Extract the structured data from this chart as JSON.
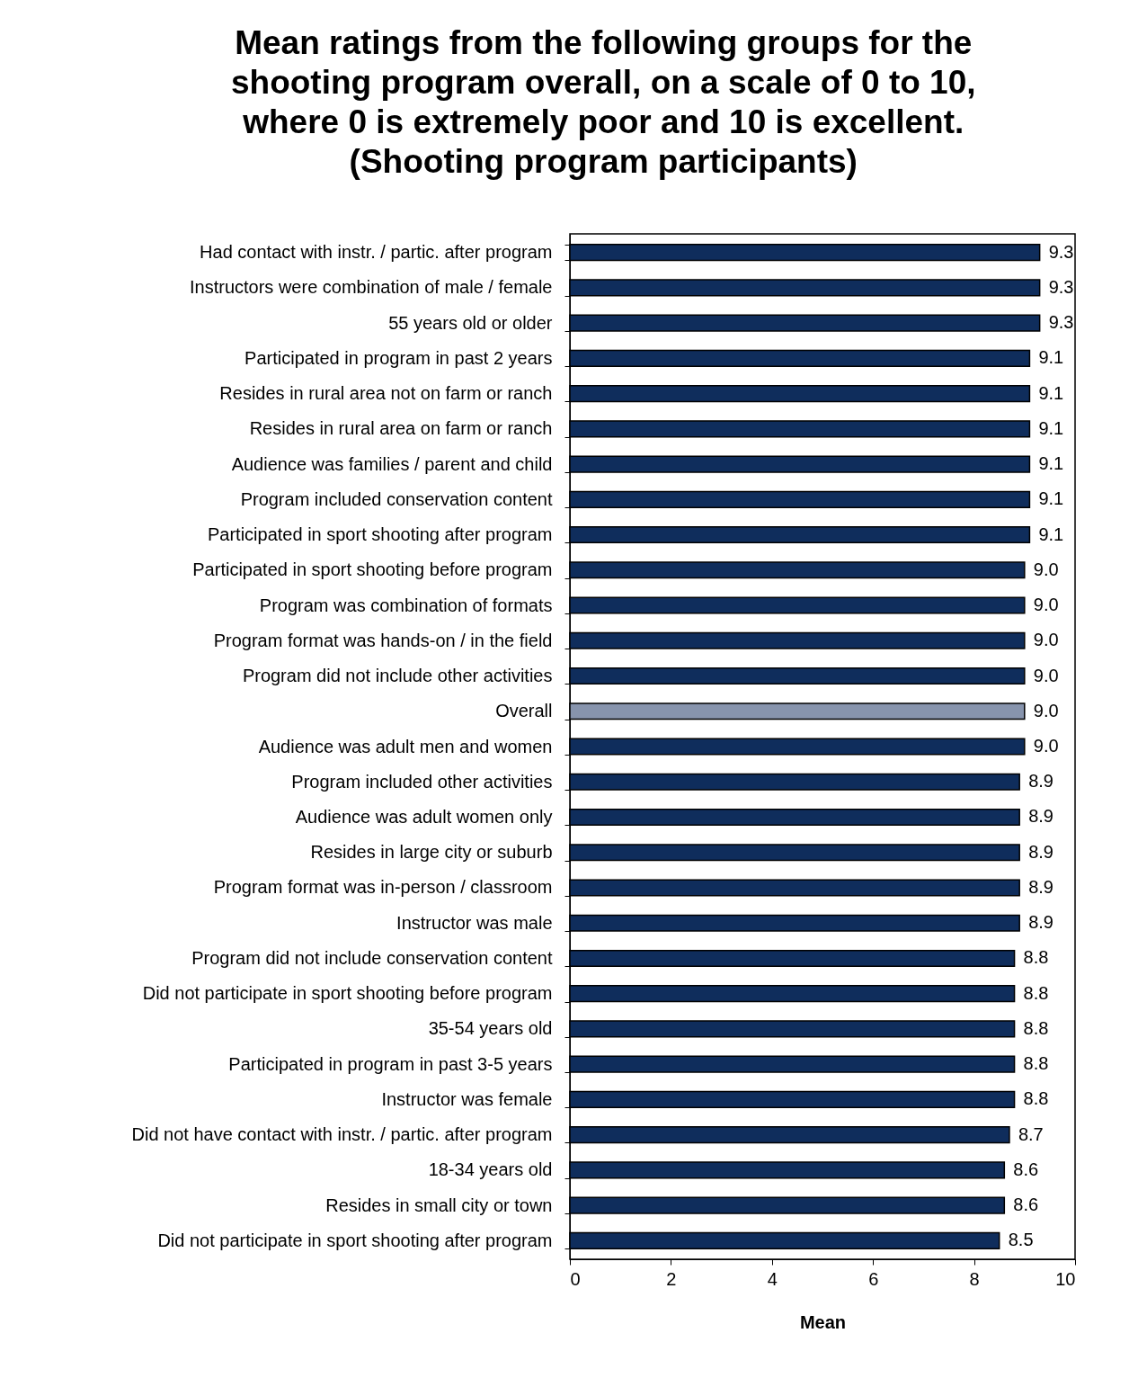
{
  "chart_data": {
    "type": "bar",
    "orientation": "horizontal",
    "title": "Mean ratings from the following groups for the shooting program overall, on a scale of 0 to 10, where 0 is extremely poor and 10 is excellent. (Shooting program participants)",
    "xlabel": "Mean",
    "categories": [
      "Had contact with instr. / partic. after program",
      "Instructors were combination of male / female",
      "55 years old or older",
      "Participated in program in past 2 years",
      "Resides in rural area not on farm or ranch",
      "Resides in rural area on farm or ranch",
      "Audience was families / parent and child",
      "Program included conservation content",
      "Participated in sport shooting after program",
      "Participated in sport shooting before program",
      "Program was combination of formats",
      "Program format was hands-on / in the field",
      "Program did not include other activities",
      "Overall",
      "Audience was adult men and women",
      "Program included other activities",
      "Audience was adult women only",
      "Resides in large city or suburb",
      "Program format was in-person / classroom",
      "Instructor was male",
      "Program did not include conservation content",
      "Did not participate in sport shooting before program",
      "35-54 years old",
      "Participated in program in past 3-5 years",
      "Instructor was female",
      "Did not have contact with instr. / partic. after program",
      "18-34 years old",
      "Resides in small city or town",
      "Did not participate in sport shooting after program"
    ],
    "values": [
      9.3,
      9.3,
      9.3,
      9.1,
      9.1,
      9.1,
      9.1,
      9.1,
      9.1,
      9.0,
      9.0,
      9.0,
      9.0,
      9.0,
      9.0,
      8.9,
      8.9,
      8.9,
      8.9,
      8.9,
      8.8,
      8.8,
      8.8,
      8.8,
      8.8,
      8.7,
      8.6,
      8.6,
      8.5
    ],
    "colors": [
      "#0f2d5c",
      "#0f2d5c",
      "#0f2d5c",
      "#0f2d5c",
      "#0f2d5c",
      "#0f2d5c",
      "#0f2d5c",
      "#0f2d5c",
      "#0f2d5c",
      "#0f2d5c",
      "#0f2d5c",
      "#0f2d5c",
      "#0f2d5c",
      "#8794ad",
      "#0f2d5c",
      "#0f2d5c",
      "#0f2d5c",
      "#0f2d5c",
      "#0f2d5c",
      "#0f2d5c",
      "#0f2d5c",
      "#0f2d5c",
      "#0f2d5c",
      "#0f2d5c",
      "#0f2d5c",
      "#0f2d5c",
      "#0f2d5c",
      "#0f2d5c",
      "#0f2d5c"
    ],
    "xlim": [
      0,
      10
    ],
    "xticks": [
      0,
      2,
      4,
      6,
      8,
      10
    ],
    "value_labels": [
      "9.3",
      "9.3",
      "9.3",
      "9.1",
      "9.1",
      "9.1",
      "9.1",
      "9.1",
      "9.1",
      "9.0",
      "9.0",
      "9.0",
      "9.0",
      "9.0",
      "9.0",
      "8.9",
      "8.9",
      "8.9",
      "8.9",
      "8.9",
      "8.8",
      "8.8",
      "8.8",
      "8.8",
      "8.8",
      "8.7",
      "8.6",
      "8.6",
      "8.5"
    ],
    "grid": false
  }
}
